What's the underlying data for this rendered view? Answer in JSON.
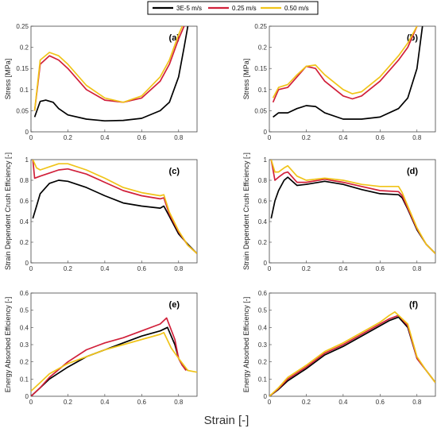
{
  "legend": {
    "entries": [
      {
        "label": "3E-5 m/s",
        "color": "#000000"
      },
      {
        "label": "0.25 m/s",
        "color": "#d1203a"
      },
      {
        "label": "0.50 m/s",
        "color": "#f0c419"
      }
    ]
  },
  "xlabel": "Strain [-]",
  "chart_data": [
    {
      "type": "line",
      "panel_label": "(a)",
      "ylabel": "Stress [MPa]",
      "xlim": [
        0,
        0.9
      ],
      "ylim": [
        0,
        0.25
      ],
      "xticks": [
        "0",
        "0.2",
        "0.4",
        "0.6",
        "0.8"
      ],
      "yticks": [
        "0",
        "0.05",
        "0.1",
        "0.15",
        "0.2",
        "0.25"
      ],
      "series": [
        {
          "name": "3E-5 m/s",
          "x": [
            0.02,
            0.05,
            0.08,
            0.12,
            0.15,
            0.2,
            0.3,
            0.4,
            0.5,
            0.6,
            0.7,
            0.75,
            0.8,
            0.83,
            0.85
          ],
          "y": [
            0.035,
            0.072,
            0.075,
            0.07,
            0.055,
            0.04,
            0.03,
            0.026,
            0.027,
            0.032,
            0.05,
            0.07,
            0.13,
            0.2,
            0.25
          ]
        },
        {
          "name": "0.25 m/s",
          "x": [
            0.02,
            0.05,
            0.1,
            0.15,
            0.2,
            0.3,
            0.4,
            0.5,
            0.6,
            0.7,
            0.75,
            0.8,
            0.83
          ],
          "y": [
            0.05,
            0.16,
            0.18,
            0.17,
            0.15,
            0.1,
            0.075,
            0.07,
            0.08,
            0.12,
            0.16,
            0.22,
            0.25
          ]
        },
        {
          "name": "0.50 m/s",
          "x": [
            0.02,
            0.05,
            0.1,
            0.15,
            0.2,
            0.3,
            0.4,
            0.5,
            0.6,
            0.7,
            0.75,
            0.8,
            0.82
          ],
          "y": [
            0.05,
            0.17,
            0.188,
            0.18,
            0.16,
            0.11,
            0.08,
            0.07,
            0.085,
            0.13,
            0.17,
            0.23,
            0.25
          ]
        }
      ]
    },
    {
      "type": "line",
      "panel_label": "(b)",
      "ylabel": "Stress [MPa]",
      "xlim": [
        0,
        0.9
      ],
      "ylim": [
        0,
        0.25
      ],
      "xticks": [
        "0",
        "0.2",
        "0.4",
        "0.6",
        "0.8"
      ],
      "yticks": [
        "0",
        "0.05",
        "0.1",
        "0.15",
        "0.2",
        "0.25"
      ],
      "series": [
        {
          "name": "3E-5 m/s",
          "x": [
            0.02,
            0.05,
            0.1,
            0.15,
            0.2,
            0.25,
            0.3,
            0.4,
            0.5,
            0.6,
            0.7,
            0.75,
            0.8,
            0.83
          ],
          "y": [
            0.035,
            0.045,
            0.045,
            0.055,
            0.062,
            0.06,
            0.045,
            0.03,
            0.03,
            0.035,
            0.055,
            0.08,
            0.15,
            0.25
          ]
        },
        {
          "name": "0.25 m/s",
          "x": [
            0.02,
            0.05,
            0.1,
            0.15,
            0.2,
            0.25,
            0.3,
            0.4,
            0.45,
            0.5,
            0.6,
            0.7,
            0.75,
            0.8
          ],
          "y": [
            0.07,
            0.1,
            0.105,
            0.13,
            0.155,
            0.15,
            0.12,
            0.085,
            0.078,
            0.085,
            0.12,
            0.17,
            0.2,
            0.25
          ]
        },
        {
          "name": "0.50 m/s",
          "x": [
            0.02,
            0.05,
            0.1,
            0.15,
            0.2,
            0.25,
            0.3,
            0.4,
            0.45,
            0.5,
            0.6,
            0.7,
            0.75,
            0.8
          ],
          "y": [
            0.08,
            0.105,
            0.112,
            0.135,
            0.155,
            0.158,
            0.135,
            0.1,
            0.09,
            0.095,
            0.13,
            0.18,
            0.21,
            0.25
          ]
        }
      ]
    },
    {
      "type": "line",
      "panel_label": "(c)",
      "ylabel": "Strain Dependent Crush Efficiency [-]",
      "xlim": [
        0,
        0.9
      ],
      "ylim": [
        0,
        1
      ],
      "xticks": [
        "0",
        "0.2",
        "0.4",
        "0.6",
        "0.8"
      ],
      "yticks": [
        "0",
        "0.2",
        "0.4",
        "0.6",
        "0.8",
        "1"
      ],
      "series": [
        {
          "name": "3E-5 m/s",
          "x": [
            0.01,
            0.03,
            0.05,
            0.1,
            0.15,
            0.2,
            0.3,
            0.4,
            0.5,
            0.6,
            0.7,
            0.72,
            0.75,
            0.8,
            0.85,
            0.9
          ],
          "y": [
            0.43,
            0.55,
            0.67,
            0.77,
            0.8,
            0.79,
            0.73,
            0.65,
            0.58,
            0.55,
            0.53,
            0.55,
            0.45,
            0.28,
            0.18,
            0.09
          ]
        },
        {
          "name": "0.25 m/s",
          "x": [
            0.01,
            0.02,
            0.05,
            0.1,
            0.15,
            0.2,
            0.3,
            0.4,
            0.5,
            0.6,
            0.7,
            0.72,
            0.75,
            0.8,
            0.85,
            0.9
          ],
          "y": [
            1,
            0.82,
            0.84,
            0.87,
            0.9,
            0.91,
            0.86,
            0.78,
            0.7,
            0.65,
            0.62,
            0.63,
            0.47,
            0.3,
            0.17,
            0.09
          ]
        },
        {
          "name": "0.50 m/s",
          "x": [
            0.01,
            0.03,
            0.05,
            0.1,
            0.15,
            0.2,
            0.3,
            0.4,
            0.5,
            0.6,
            0.7,
            0.72,
            0.75,
            0.8,
            0.85,
            0.9
          ],
          "y": [
            1,
            0.92,
            0.9,
            0.93,
            0.96,
            0.96,
            0.9,
            0.82,
            0.73,
            0.68,
            0.65,
            0.66,
            0.49,
            0.31,
            0.17,
            0.09
          ]
        }
      ]
    },
    {
      "type": "line",
      "panel_label": "(d)",
      "ylabel": "Strain Dependent Crush Efficiency [-]",
      "xlim": [
        0,
        0.9
      ],
      "ylim": [
        0,
        1
      ],
      "xticks": [
        "0",
        "0.2",
        "0.4",
        "0.6",
        "0.8"
      ],
      "yticks": [
        "0",
        "0.2",
        "0.4",
        "0.6",
        "0.8",
        "1"
      ],
      "series": [
        {
          "name": "3E-5 m/s",
          "x": [
            0.01,
            0.03,
            0.05,
            0.08,
            0.1,
            0.15,
            0.2,
            0.3,
            0.4,
            0.5,
            0.6,
            0.7,
            0.72,
            0.75,
            0.8,
            0.85,
            0.9
          ],
          "y": [
            0.43,
            0.6,
            0.7,
            0.8,
            0.83,
            0.75,
            0.76,
            0.79,
            0.76,
            0.71,
            0.67,
            0.66,
            0.63,
            0.52,
            0.32,
            0.18,
            0.09
          ]
        },
        {
          "name": "0.25 m/s",
          "x": [
            0.01,
            0.03,
            0.05,
            0.08,
            0.1,
            0.15,
            0.2,
            0.3,
            0.4,
            0.5,
            0.6,
            0.7,
            0.72,
            0.75,
            0.8,
            0.85,
            0.9
          ],
          "y": [
            1,
            0.8,
            0.83,
            0.87,
            0.88,
            0.78,
            0.78,
            0.81,
            0.78,
            0.74,
            0.7,
            0.69,
            0.65,
            0.53,
            0.33,
            0.18,
            0.09
          ]
        },
        {
          "name": "0.50 m/s",
          "x": [
            0.01,
            0.03,
            0.05,
            0.08,
            0.1,
            0.15,
            0.2,
            0.3,
            0.4,
            0.5,
            0.6,
            0.7,
            0.72,
            0.75,
            0.8,
            0.85,
            0.9
          ],
          "y": [
            1,
            0.88,
            0.88,
            0.92,
            0.94,
            0.84,
            0.8,
            0.82,
            0.8,
            0.76,
            0.74,
            0.74,
            0.68,
            0.55,
            0.34,
            0.18,
            0.09
          ]
        }
      ]
    },
    {
      "type": "line",
      "panel_label": "(e)",
      "ylabel": "Energy Absorbed Efficiency [-]",
      "xlim": [
        0,
        0.9
      ],
      "ylim": [
        0,
        0.6
      ],
      "xticks": [
        "0",
        "0.2",
        "0.4",
        "0.6",
        "0.8"
      ],
      "yticks": [
        "0",
        "0.1",
        "0.2",
        "0.3",
        "0.4",
        "0.5",
        "0.6"
      ],
      "series": [
        {
          "name": "3E-5 m/s",
          "x": [
            0,
            0.05,
            0.1,
            0.2,
            0.3,
            0.4,
            0.5,
            0.6,
            0.7,
            0.74,
            0.78,
            0.8,
            0.82,
            0.85
          ],
          "y": [
            0,
            0.05,
            0.1,
            0.17,
            0.23,
            0.27,
            0.31,
            0.35,
            0.38,
            0.4,
            0.3,
            0.22,
            0.18,
            0.15
          ]
        },
        {
          "name": "0.25 m/s",
          "x": [
            0,
            0.05,
            0.1,
            0.2,
            0.3,
            0.4,
            0.5,
            0.6,
            0.7,
            0.735,
            0.78,
            0.8,
            0.82,
            0.84
          ],
          "y": [
            0,
            0.05,
            0.11,
            0.2,
            0.27,
            0.31,
            0.34,
            0.38,
            0.42,
            0.455,
            0.33,
            0.22,
            0.18,
            0.15
          ]
        },
        {
          "name": "0.50 m/s",
          "x": [
            0,
            0.05,
            0.1,
            0.2,
            0.3,
            0.4,
            0.5,
            0.6,
            0.7,
            0.72,
            0.76,
            0.8,
            0.85,
            0.9
          ],
          "y": [
            0.03,
            0.08,
            0.13,
            0.19,
            0.23,
            0.27,
            0.3,
            0.33,
            0.36,
            0.37,
            0.28,
            0.22,
            0.15,
            0.14
          ]
        }
      ]
    },
    {
      "type": "line",
      "panel_label": "(f)",
      "ylabel": "Energy Absorbed Efficiency [-]",
      "xlim": [
        0,
        0.9
      ],
      "ylim": [
        0,
        0.6
      ],
      "xticks": [
        "0",
        "0.2",
        "0.4",
        "0.6",
        "0.8"
      ],
      "yticks": [
        "0",
        "0.1",
        "0.2",
        "0.3",
        "0.4",
        "0.5",
        "0.6"
      ],
      "series": [
        {
          "name": "3E-5 m/s",
          "x": [
            0,
            0.05,
            0.1,
            0.2,
            0.3,
            0.4,
            0.5,
            0.6,
            0.65,
            0.7,
            0.75,
            0.8,
            0.85,
            0.9
          ],
          "y": [
            0,
            0.04,
            0.09,
            0.16,
            0.24,
            0.29,
            0.35,
            0.41,
            0.44,
            0.46,
            0.4,
            0.22,
            0.15,
            0.08
          ]
        },
        {
          "name": "0.25 m/s",
          "x": [
            0,
            0.05,
            0.1,
            0.2,
            0.3,
            0.4,
            0.5,
            0.6,
            0.65,
            0.7,
            0.75,
            0.8,
            0.85,
            0.9
          ],
          "y": [
            0,
            0.045,
            0.1,
            0.17,
            0.25,
            0.3,
            0.36,
            0.42,
            0.45,
            0.47,
            0.41,
            0.22,
            0.15,
            0.08
          ]
        },
        {
          "name": "0.50 m/s",
          "x": [
            0,
            0.05,
            0.1,
            0.2,
            0.3,
            0.4,
            0.5,
            0.6,
            0.65,
            0.68,
            0.75,
            0.8,
            0.85,
            0.9
          ],
          "y": [
            0,
            0.05,
            0.11,
            0.18,
            0.26,
            0.31,
            0.37,
            0.43,
            0.47,
            0.49,
            0.42,
            0.23,
            0.15,
            0.08
          ]
        }
      ]
    }
  ]
}
